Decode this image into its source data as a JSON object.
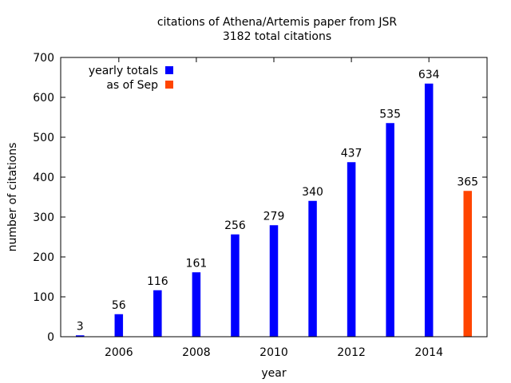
{
  "chart_data": {
    "type": "bar",
    "title": "citations of Athena/Artemis paper from JSR",
    "subtitle": "3182 total citations",
    "xlabel": "year",
    "ylabel": "number of citations",
    "xlim": [
      2004.5,
      2015.5
    ],
    "ylim": [
      0,
      700
    ],
    "x_ticks": [
      2006,
      2008,
      2010,
      2012,
      2014
    ],
    "y_ticks": [
      0,
      100,
      200,
      300,
      400,
      500,
      600,
      700
    ],
    "legend_position": "top-left",
    "series": [
      {
        "name": "yearly totals",
        "color": "#0000ff",
        "x": [
          2005,
          2006,
          2007,
          2008,
          2009,
          2010,
          2011,
          2012,
          2013,
          2014
        ],
        "values": [
          3,
          56,
          116,
          161,
          256,
          279,
          340,
          437,
          535,
          634
        ],
        "labels": [
          "3",
          "56",
          "116",
          "161",
          "256",
          "279",
          "340",
          "437",
          "535",
          "634"
        ]
      },
      {
        "name": "as of Sep",
        "color": "#ff4500",
        "x": [
          2015
        ],
        "values": [
          365
        ],
        "labels": [
          "365"
        ]
      }
    ]
  }
}
